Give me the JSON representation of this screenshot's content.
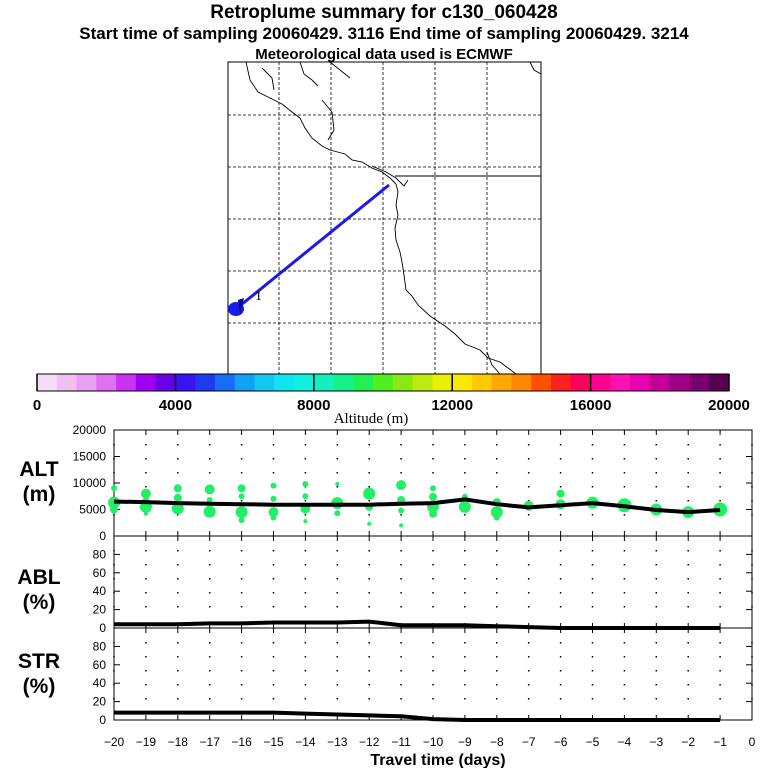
{
  "header": {
    "title": "Retroplume summary for c130_060428",
    "subtitle": "Start time of sampling 20060429.  3116     End time of sampling 20060429.  3214",
    "subtitle2": "Meteorological data used is ECMWF"
  },
  "colors": {
    "trajectory": "#1a1aee",
    "scatter": "#22ee66",
    "line": "#000000"
  },
  "chart_data": [
    {
      "type": "map",
      "name": "retroplume-map",
      "trajectory_label": "1",
      "colorbar": {
        "title": "Altitude (m)",
        "min": 0,
        "max": 20000,
        "tick_labels": [
          "0",
          "4000",
          "8000",
          "12000",
          "16000",
          "20000"
        ],
        "colors": [
          "#f8dcf8",
          "#f0c0f0",
          "#e8a0f0",
          "#e070f0",
          "#cc30f0",
          "#a000f0",
          "#6a00e8",
          "#3a14f0",
          "#1b3cf0",
          "#1a6cf8",
          "#12a0f8",
          "#10c8f0",
          "#10e4f0",
          "#10f0e0",
          "#12f0bc",
          "#14f08c",
          "#20f050",
          "#50f020",
          "#88ea10",
          "#c0ea10",
          "#eaf000",
          "#ffe800",
          "#ffc800",
          "#ffa800",
          "#ff8800",
          "#ff5000",
          "#ff2020",
          "#ff0060",
          "#ff0090",
          "#ff10b0",
          "#e800b0",
          "#c00098",
          "#a00088",
          "#7a0070",
          "#560050"
        ]
      }
    },
    {
      "type": "scatter",
      "name": "alt-panel",
      "ylabel": "ALT\n(m)",
      "ylim": [
        0,
        20000
      ],
      "yticks": [
        "0",
        "5000",
        "10000",
        "15000",
        "20000"
      ],
      "xlim": [
        -20,
        0
      ],
      "mean_line": {
        "x": [
          -20,
          -19,
          -18,
          -17,
          -16,
          -15,
          -14,
          -13,
          -12,
          -11,
          -10,
          -9,
          -8,
          -7,
          -6,
          -5,
          -4,
          -3,
          -2,
          -1
        ],
        "y": [
          6500,
          6400,
          6200,
          6100,
          6000,
          5900,
          5900,
          5900,
          5900,
          6100,
          6200,
          6900,
          6000,
          5400,
          5800,
          6200,
          5600,
          4900,
          4500,
          4900
        ]
      },
      "points": [
        {
          "x": -20,
          "y": 9000,
          "s": 3
        },
        {
          "x": -20,
          "y": 6300,
          "s": 6
        },
        {
          "x": -20,
          "y": 5000,
          "s": 4
        },
        {
          "x": -19,
          "y": 8000,
          "s": 5
        },
        {
          "x": -19,
          "y": 6500,
          "s": 4
        },
        {
          "x": -19,
          "y": 5500,
          "s": 6
        },
        {
          "x": -19,
          "y": 4200,
          "s": 2
        },
        {
          "x": -18,
          "y": 9000,
          "s": 4
        },
        {
          "x": -18,
          "y": 7200,
          "s": 4
        },
        {
          "x": -18,
          "y": 5200,
          "s": 6
        },
        {
          "x": -17,
          "y": 8800,
          "s": 5
        },
        {
          "x": -17,
          "y": 6800,
          "s": 3
        },
        {
          "x": -17,
          "y": 4600,
          "s": 6
        },
        {
          "x": -16,
          "y": 9000,
          "s": 4
        },
        {
          "x": -16,
          "y": 7500,
          "s": 3
        },
        {
          "x": -16,
          "y": 4500,
          "s": 6
        },
        {
          "x": -16,
          "y": 3000,
          "s": 3
        },
        {
          "x": -15,
          "y": 9500,
          "s": 3
        },
        {
          "x": -15,
          "y": 7000,
          "s": 3
        },
        {
          "x": -15,
          "y": 4500,
          "s": 5
        },
        {
          "x": -15,
          "y": 3500,
          "s": 3
        },
        {
          "x": -14,
          "y": 9800,
          "s": 3
        },
        {
          "x": -14,
          "y": 7500,
          "s": 3
        },
        {
          "x": -14,
          "y": 5200,
          "s": 5
        },
        {
          "x": -14,
          "y": 2800,
          "s": 2
        },
        {
          "x": -13,
          "y": 9800,
          "s": 2
        },
        {
          "x": -13,
          "y": 6200,
          "s": 6
        },
        {
          "x": -13,
          "y": 4300,
          "s": 3
        },
        {
          "x": -12,
          "y": 8000,
          "s": 6
        },
        {
          "x": -12,
          "y": 5500,
          "s": 4
        },
        {
          "x": -12,
          "y": 2300,
          "s": 2
        },
        {
          "x": -11,
          "y": 9600,
          "s": 5
        },
        {
          "x": -11,
          "y": 6800,
          "s": 4
        },
        {
          "x": -11,
          "y": 4800,
          "s": 3
        },
        {
          "x": -11,
          "y": 2000,
          "s": 2
        },
        {
          "x": -10,
          "y": 9000,
          "s": 3
        },
        {
          "x": -10,
          "y": 7400,
          "s": 4
        },
        {
          "x": -10,
          "y": 5600,
          "s": 6
        },
        {
          "x": -10,
          "y": 4200,
          "s": 4
        },
        {
          "x": -9,
          "y": 7400,
          "s": 3
        },
        {
          "x": -9,
          "y": 5500,
          "s": 6
        },
        {
          "x": -8,
          "y": 6400,
          "s": 4
        },
        {
          "x": -8,
          "y": 4500,
          "s": 6
        },
        {
          "x": -8,
          "y": 3500,
          "s": 3
        },
        {
          "x": -7,
          "y": 5700,
          "s": 5
        },
        {
          "x": -6,
          "y": 8000,
          "s": 4
        },
        {
          "x": -6,
          "y": 6000,
          "s": 5
        },
        {
          "x": -5,
          "y": 6300,
          "s": 6
        },
        {
          "x": -4,
          "y": 5800,
          "s": 7
        },
        {
          "x": -3,
          "y": 5000,
          "s": 6
        },
        {
          "x": -2,
          "y": 4500,
          "s": 6
        },
        {
          "x": -1,
          "y": 5000,
          "s": 7
        }
      ]
    },
    {
      "type": "line",
      "name": "abl-panel",
      "ylabel": "ABL\n(%)",
      "ylim": [
        0,
        100
      ],
      "yticks": [
        "0",
        "20",
        "40",
        "60",
        "80"
      ],
      "x": [
        -20,
        -19,
        -18,
        -17,
        -16,
        -15,
        -14,
        -13,
        -12,
        -11,
        -10,
        -9,
        -8,
        -7,
        -6,
        -5,
        -4,
        -3,
        -2,
        -1
      ],
      "y": [
        4,
        4,
        4,
        5,
        5,
        6,
        6,
        6,
        7,
        3,
        3,
        3,
        2,
        1,
        0,
        0,
        0,
        0,
        0,
        0
      ]
    },
    {
      "type": "line",
      "name": "str-panel",
      "ylabel": "STR\n(%)",
      "ylim": [
        0,
        100
      ],
      "yticks": [
        "0",
        "20",
        "40",
        "60",
        "80"
      ],
      "x": [
        -20,
        -19,
        -18,
        -17,
        -16,
        -15,
        -14,
        -13,
        -12,
        -11,
        -10,
        -9,
        -8,
        -7,
        -6,
        -5,
        -4,
        -3,
        -2,
        -1
      ],
      "y": [
        8,
        8,
        8,
        8,
        8,
        8,
        7,
        6,
        5,
        4,
        1,
        0,
        0,
        0,
        0,
        0,
        0,
        0,
        0,
        0
      ],
      "xlabel": "Travel time (days)",
      "xticks": [
        "−20",
        "−19",
        "−18",
        "−17",
        "−16",
        "−15",
        "−14",
        "−13",
        "−12",
        "−11",
        "−10",
        "−9",
        "−8",
        "−7",
        "−6",
        "−5",
        "−4",
        "−3",
        "−2",
        "−1",
        "0"
      ]
    }
  ]
}
